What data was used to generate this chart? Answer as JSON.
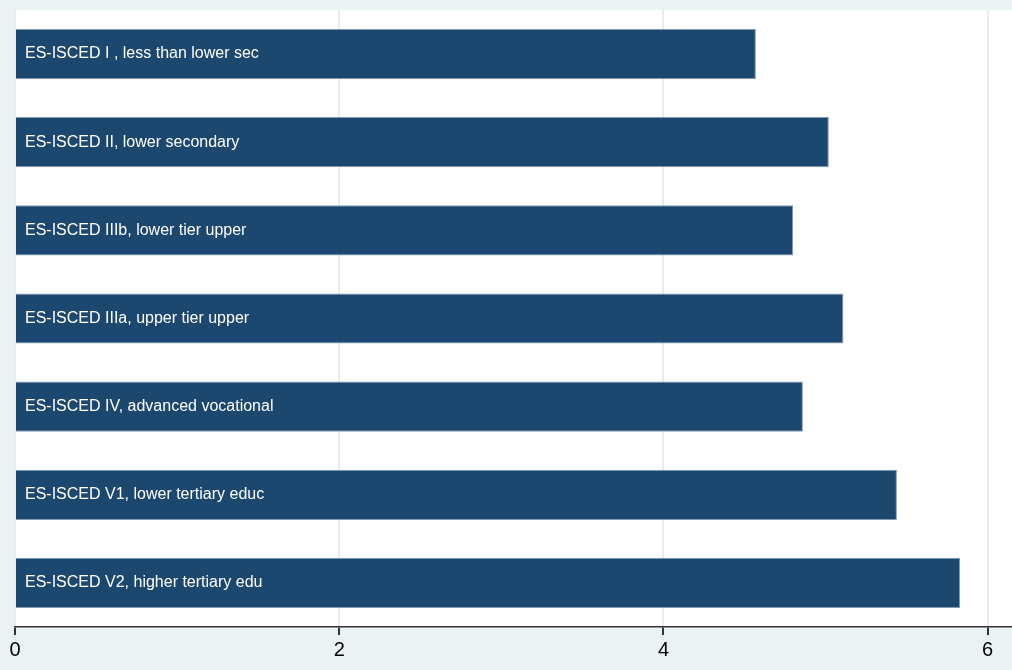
{
  "chart_data": {
    "type": "bar",
    "orientation": "horizontal",
    "categories": [
      "ES-ISCED I , less than lower sec",
      "ES-ISCED II, lower secondary",
      "ES-ISCED IIIb, lower tier upper",
      "ES-ISCED IIIa, upper tier upper",
      "ES-ISCED IV, advanced vocational",
      "ES-ISCED V1, lower tertiary educ",
      "ES-ISCED V2, higher tertiary edu"
    ],
    "values": [
      4.57,
      5.02,
      4.8,
      5.11,
      4.86,
      5.44,
      5.83
    ],
    "color": "#1c476e",
    "xlim": [
      0,
      6.15
    ],
    "xticks": [
      0,
      2,
      4,
      6
    ],
    "grid": "x",
    "legend": false
  }
}
